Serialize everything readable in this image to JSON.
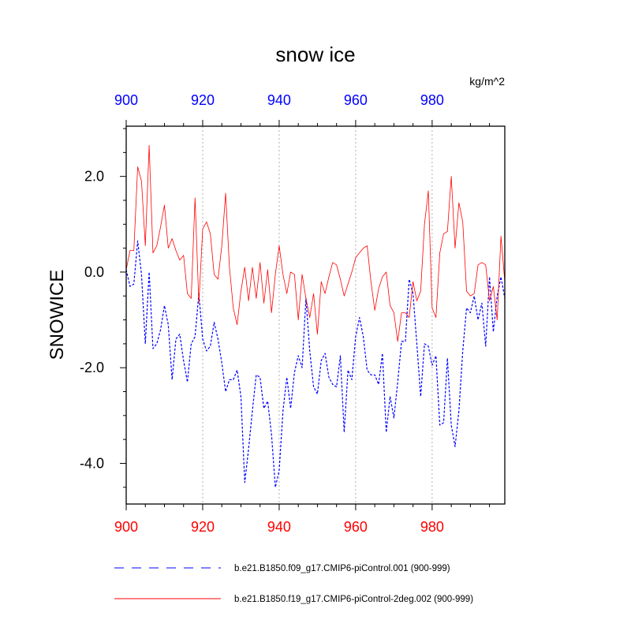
{
  "chart_data": {
    "type": "line",
    "title": "snow ice",
    "units": "kg/m^2",
    "ylabel": "SNOWICE",
    "xlabel": "",
    "xlim": [
      900,
      999
    ],
    "ylim": [
      -4.85,
      3.05
    ],
    "x_ticks": [
      900,
      920,
      940,
      960,
      980
    ],
    "x_tick_labels": [
      "900",
      "920",
      "940",
      "960",
      "980"
    ],
    "y_ticks": [
      2.0,
      0.0,
      -2.0,
      -4.0
    ],
    "y_tick_labels": [
      "2.0",
      "0.0",
      "-2.0",
      "-4.0"
    ],
    "top_axis_color": "#0000ff",
    "bottom_axis_color": "#ff0000",
    "grid": "vertical dotted at major x ticks",
    "series": [
      {
        "name": "b.e21.B1850.f09_g17.CMIP6-piControl.001 (900-999)",
        "color": "#0000ff",
        "dash": "dashed",
        "values": [
          0.05,
          -0.3,
          -0.25,
          0.65,
          -0.05,
          -1.5,
          0.0,
          -1.6,
          -1.5,
          -1.2,
          -0.7,
          -1.1,
          -2.25,
          -1.4,
          -1.3,
          -1.85,
          -2.3,
          -1.5,
          -1.35,
          -0.45,
          -1.4,
          -1.65,
          -1.55,
          -1.05,
          -1.4,
          -1.9,
          -2.5,
          -2.25,
          -2.25,
          -2.05,
          -2.6,
          -4.4,
          -3.7,
          -2.9,
          -2.15,
          -2.2,
          -2.85,
          -2.7,
          -3.4,
          -4.5,
          -4.15,
          -2.9,
          -2.2,
          -2.85,
          -2.1,
          -1.75,
          -2.0,
          -0.55,
          -1.65,
          -2.4,
          -2.55,
          -1.85,
          -1.7,
          -2.2,
          -2.35,
          -2.4,
          -1.75,
          -3.35,
          -2.05,
          -2.25,
          -1.35,
          -0.95,
          -1.35,
          -2.05,
          -2.15,
          -2.15,
          -2.35,
          -1.7,
          -3.35,
          -2.6,
          -3.05,
          -2.3,
          -1.45,
          -1.45,
          -0.15,
          -0.45,
          -1.5,
          -2.6,
          -1.5,
          -1.55,
          -1.95,
          -1.75,
          -3.2,
          -3.15,
          -1.8,
          -3.2,
          -3.65,
          -2.9,
          -1.65,
          -0.75,
          -0.85,
          -0.5,
          -1.0,
          -0.65,
          -1.55,
          -0.1,
          -1.25,
          -0.5,
          -0.1,
          -0.55
        ]
      },
      {
        "name": "b.e21.B1850.f19_g17.CMIP6-piControl-2deg.002 (900-999)",
        "color": "#ff0000",
        "dash": "solid",
        "values": [
          0.05,
          0.45,
          0.45,
          2.2,
          1.9,
          0.55,
          2.65,
          0.4,
          0.55,
          0.95,
          1.4,
          0.5,
          0.7,
          0.45,
          0.25,
          0.35,
          -0.45,
          -0.55,
          1.55,
          -0.65,
          0.9,
          1.05,
          0.8,
          -0.05,
          -0.15,
          0.55,
          1.65,
          0.1,
          -0.75,
          -1.1,
          -0.4,
          0.1,
          -0.6,
          0.1,
          -0.55,
          0.2,
          -0.65,
          0.05,
          -0.85,
          -0.05,
          0.55,
          -0.05,
          -0.45,
          0.0,
          -0.05,
          -1.0,
          -0.05,
          -0.55,
          -0.95,
          -0.45,
          -1.3,
          -0.2,
          -0.45,
          -0.1,
          0.2,
          0.15,
          -0.15,
          -0.5,
          -0.25,
          0.0,
          0.3,
          0.4,
          0.5,
          0.55,
          -0.2,
          -0.8,
          -0.35,
          -0.1,
          0.0,
          -0.7,
          -0.85,
          -1.45,
          -0.85,
          -0.85,
          -0.95,
          -0.2,
          -0.6,
          -0.4,
          1.0,
          1.7,
          -0.75,
          -0.95,
          0.4,
          0.8,
          0.85,
          2.0,
          0.5,
          1.45,
          1.05,
          -0.4,
          -0.5,
          -0.45,
          0.15,
          0.2,
          0.15,
          -0.6,
          -0.3,
          -1.0,
          0.75,
          -0.2
        ]
      }
    ]
  }
}
